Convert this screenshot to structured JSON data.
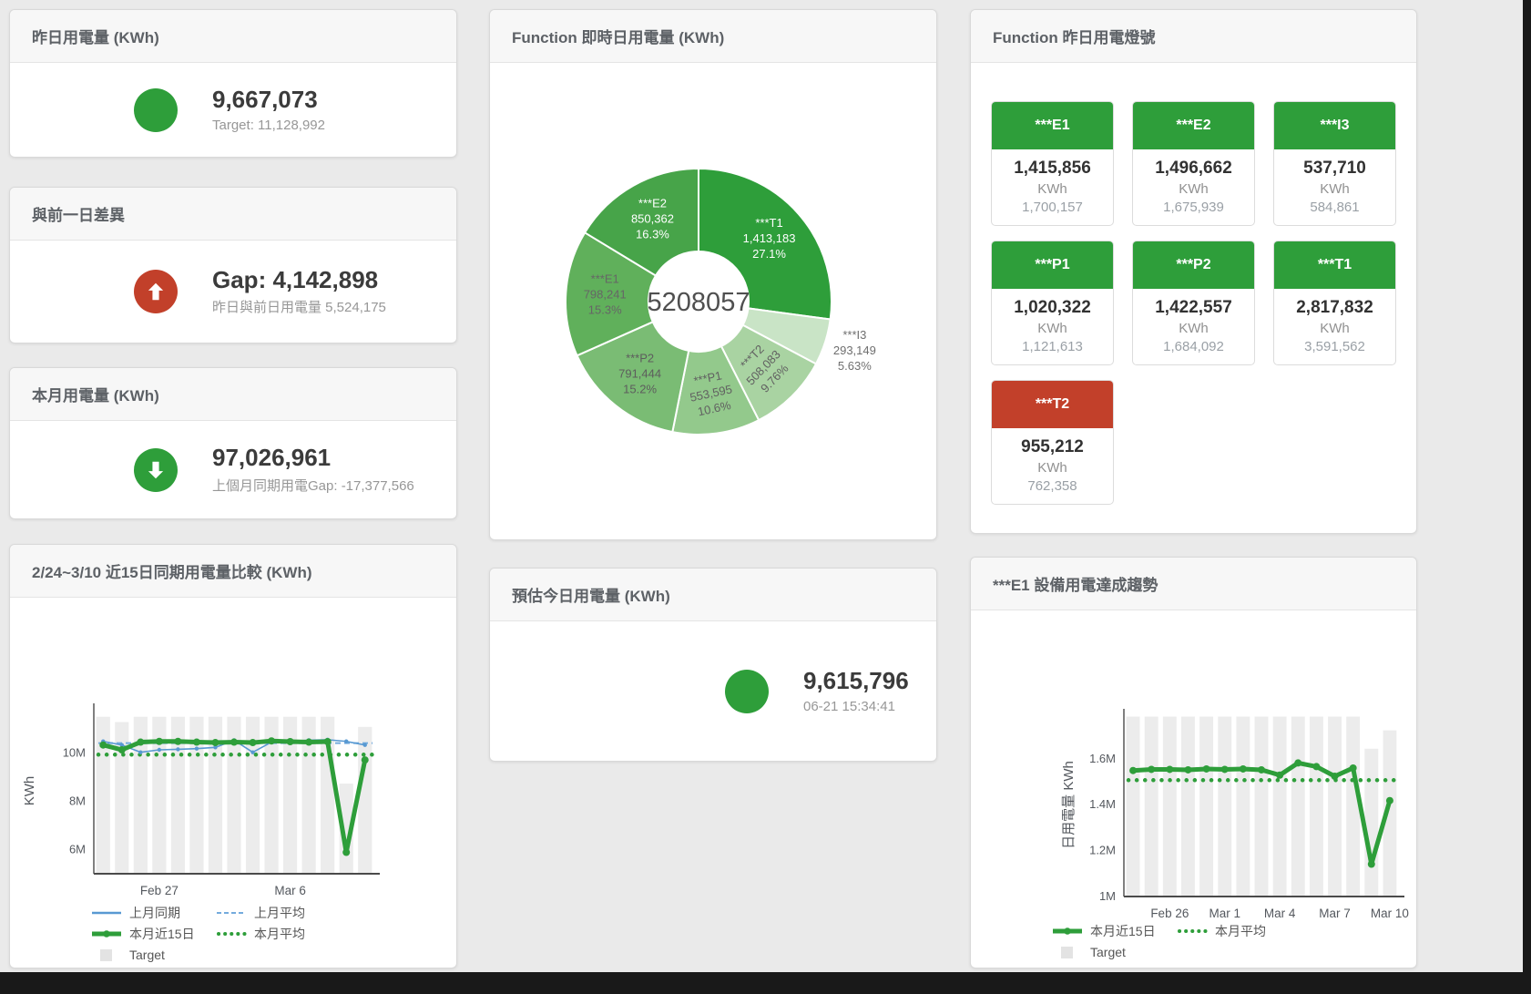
{
  "stat_cards": [
    {
      "title": "昨日用電量 (KWh)",
      "value": "9,667,073",
      "subtitle": "Target: 11,128,992",
      "icon": "circle",
      "icon_color": "#2e9e3a"
    },
    {
      "title": "與前一日差異",
      "value": "Gap: 4,142,898",
      "subtitle": "昨日與前日用電量 5,524,175",
      "icon": "arrow-up",
      "icon_color": "#c2402a"
    },
    {
      "title": "本月用電量 (KWh)",
      "value": "97,026,961",
      "subtitle": "上個月同期用電Gap: -17,377,566",
      "icon": "arrow-down",
      "icon_color": "#2e9e3a"
    },
    {
      "title": "預估今日用電量 (KWh)",
      "value": "9,615,796",
      "subtitle": "06-21 15:34:41",
      "icon": "circle",
      "icon_color": "#2e9e3a"
    }
  ],
  "lights_card": {
    "title": "Function 昨日用電燈號",
    "unit": "KWh",
    "items": [
      {
        "label": "***E1",
        "value": "1,415,856",
        "target": "1,700,157",
        "color": "#2e9e3a"
      },
      {
        "label": "***E2",
        "value": "1,496,662",
        "target": "1,675,939",
        "color": "#2e9e3a"
      },
      {
        "label": "***I3",
        "value": "537,710",
        "target": "584,861",
        "color": "#2e9e3a"
      },
      {
        "label": "***P1",
        "value": "1,020,322",
        "target": "1,121,613",
        "color": "#2e9e3a"
      },
      {
        "label": "***P2",
        "value": "1,422,557",
        "target": "1,684,092",
        "color": "#2e9e3a"
      },
      {
        "label": "***T1",
        "value": "2,817,832",
        "target": "3,591,562",
        "color": "#2e9e3a"
      },
      {
        "label": "***T2",
        "value": "955,212",
        "target": "762,358",
        "color": "#c2402a"
      }
    ]
  },
  "chart_data": [
    {
      "type": "pie",
      "title": "Function 即時日用電量 (KWh)",
      "center_total": "5208057",
      "legend_position": "none",
      "slices": [
        {
          "name": "***T1",
          "value": 1413183,
          "display": "1,413,183",
          "pct": "27.1%",
          "color": "#2e9e3a",
          "label_color": "#ffffff"
        },
        {
          "name": "***I3",
          "value": 293149,
          "display": "293,149",
          "pct": "5.63%",
          "color": "#c9e4c6",
          "label_color": "#6f6f6f",
          "outside": true
        },
        {
          "name": "***T2",
          "value": 508083,
          "display": "508,083",
          "pct": "9.76%",
          "color": "#a9d3a2",
          "label_color": "#616161",
          "rotate": -46
        },
        {
          "name": "***P1",
          "value": 553595,
          "display": "553,595",
          "pct": "10.6%",
          "color": "#93c98c",
          "label_color": "#616161",
          "rotate": -12
        },
        {
          "name": "***P2",
          "value": 791444,
          "display": "791,444",
          "pct": "15.2%",
          "color": "#7abc74",
          "label_color": "#5d5d5d"
        },
        {
          "name": "***E1",
          "value": 798241,
          "display": "798,241",
          "pct": "15.3%",
          "color": "#60b05b",
          "label_color": "#666666"
        },
        {
          "name": "***E2",
          "value": 850362,
          "display": "850,362",
          "pct": "16.3%",
          "color": "#47a449",
          "label_color": "#ffffff"
        }
      ]
    },
    {
      "type": "line",
      "title": "2/24~3/10 近15日同期用電量比較 (KWh)",
      "ylabel": "KWh",
      "ylim": [
        5.0,
        11.8
      ],
      "grid": false,
      "legend_position": "bottom",
      "yticks": [
        {
          "v": 6,
          "label": "6M"
        },
        {
          "v": 8,
          "label": "8M"
        },
        {
          "v": 10,
          "label": "10M"
        }
      ],
      "xticks": [
        {
          "i": 3,
          "label": "Feb 27"
        },
        {
          "i": 10,
          "label": "Mar 6"
        }
      ],
      "x_range": "2/24 - 3/10 (15 days)",
      "unit": "M KWh",
      "series": [
        {
          "name": "Target",
          "type": "bar",
          "color": "#ececec",
          "values": [
            11.47,
            11.25,
            11.47,
            11.47,
            11.47,
            11.47,
            11.47,
            11.47,
            11.47,
            11.47,
            11.47,
            11.47,
            11.47,
            8.7,
            11.05
          ]
        },
        {
          "name": "上月平均",
          "type": "const",
          "value": 10.38,
          "color": "#74abdd",
          "width": 2,
          "dash": "6 4"
        },
        {
          "name": "本月平均",
          "type": "const",
          "value": 9.9,
          "color": "#2e9e3a",
          "width": 4.5,
          "dash": "0.1 9",
          "cap": "round"
        },
        {
          "name": "上月同期",
          "type": "line",
          "color": "#5899d2",
          "width": 1.6,
          "marker": 2.2,
          "values": [
            10.45,
            10.3,
            10.0,
            10.1,
            10.12,
            10.15,
            10.2,
            10.5,
            10.0,
            10.42,
            10.45,
            10.5,
            10.52,
            10.45,
            10.3
          ]
        },
        {
          "name": "本月近15日",
          "type": "line",
          "color": "#2e9e3a",
          "width": 5,
          "marker": 4,
          "values": [
            10.3,
            10.1,
            10.42,
            10.45,
            10.45,
            10.42,
            10.4,
            10.42,
            10.4,
            10.47,
            10.44,
            10.42,
            10.44,
            5.85,
            9.68
          ]
        }
      ],
      "legend": [
        {
          "label": "上月同期",
          "swatch": "line",
          "color": "#5899d2"
        },
        {
          "label": "上月平均",
          "swatch": "dash",
          "color": "#74abdd"
        },
        {
          "label": "本月近15日",
          "swatch": "thick",
          "color": "#2e9e3a"
        },
        {
          "label": "本月平均",
          "swatch": "dots",
          "color": "#2e9e3a"
        },
        {
          "label": "Target",
          "swatch": "square",
          "color": "#e3e3e3"
        }
      ]
    },
    {
      "type": "line",
      "title": "***E1 設備用電達成趨勢",
      "ylabel": "日用電量 KWh",
      "ylim": [
        1.0,
        1.79
      ],
      "grid": false,
      "legend_position": "bottom",
      "yticks": [
        {
          "v": 1,
          "label": "1M"
        },
        {
          "v": 1.2,
          "label": "1.2M"
        },
        {
          "v": 1.4,
          "label": "1.4M"
        },
        {
          "v": 1.6,
          "label": "1.6M"
        }
      ],
      "xticks": [
        {
          "i": 2,
          "label": "Feb 26"
        },
        {
          "i": 5,
          "label": "Mar 1"
        },
        {
          "i": 8,
          "label": "Mar 4"
        },
        {
          "i": 11,
          "label": "Mar 7"
        },
        {
          "i": 14,
          "label": "Mar 10"
        }
      ],
      "x_range": "Feb 24 - Mar 10 (15 days)",
      "unit": "M KWh",
      "series": [
        {
          "name": "Target",
          "type": "bar",
          "color": "#ececec",
          "values": [
            1.78,
            1.78,
            1.78,
            1.78,
            1.78,
            1.78,
            1.78,
            1.78,
            1.78,
            1.78,
            1.78,
            1.78,
            1.78,
            1.64,
            1.72
          ]
        },
        {
          "name": "本月平均",
          "type": "const",
          "value": 1.503,
          "color": "#2e9e3a",
          "width": 4.5,
          "dash": "0.1 9",
          "cap": "round"
        },
        {
          "name": "本月近15日",
          "type": "line",
          "color": "#2e9e3a",
          "width": 5,
          "marker": 4,
          "values": [
            1.545,
            1.55,
            1.55,
            1.548,
            1.552,
            1.55,
            1.552,
            1.548,
            1.525,
            1.578,
            1.562,
            1.52,
            1.556,
            1.137,
            1.414
          ]
        }
      ],
      "legend": [
        {
          "label": "本月近15日",
          "swatch": "thick",
          "color": "#2e9e3a"
        },
        {
          "label": "本月平均",
          "swatch": "dots",
          "color": "#2e9e3a"
        },
        {
          "label": "Target",
          "swatch": "square",
          "color": "#e3e3e3"
        }
      ]
    }
  ]
}
